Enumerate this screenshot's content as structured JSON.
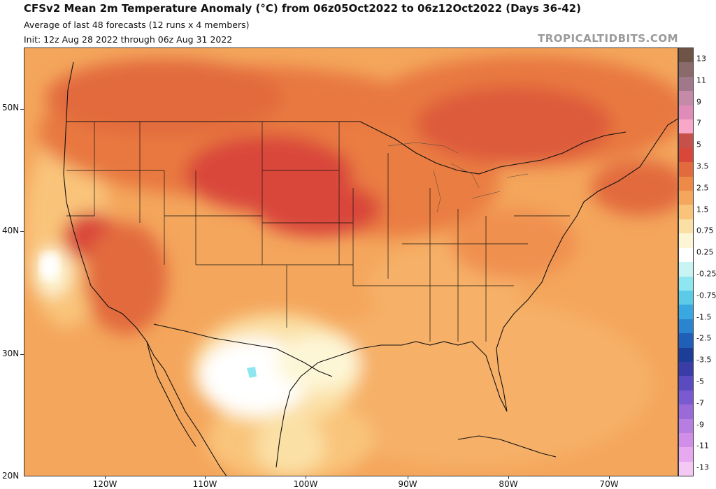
{
  "header": {
    "title": "CFSv2 Mean 2m Temperature Anomaly (°C) from 06z05Oct2022 to 06z12Oct2022 (Days 36-42)",
    "subtitle_1": "Average of last 48 forecasts (12 runs x 4 members)",
    "subtitle_2": "Init: 12z Aug 28 2022 through 06z Aug 31 2022",
    "credit": "TROPICALTIDBITS.COM"
  },
  "map": {
    "lat_labels": [
      "50N",
      "40N",
      "30N",
      "20N"
    ],
    "lon_labels": [
      "120W",
      "110W",
      "100W",
      "90W",
      "80W",
      "70W"
    ]
  },
  "legend": {
    "labels": [
      "13",
      "11",
      "9",
      "7",
      "5",
      "3.5",
      "2.5",
      "1.5",
      "0.75",
      "0.25",
      "-0.25",
      "-0.75",
      "-1.5",
      "-2.5",
      "-3.5",
      "-5",
      "-7",
      "-9",
      "-11",
      "-13"
    ],
    "colors": [
      "#6e5444",
      "#8a6a6a",
      "#a0788a",
      "#c48aa8",
      "#e08cb8",
      "#f7a7c7",
      "#c8504a",
      "#d9463a",
      "#e26a3c",
      "#ee8a48",
      "#f4a65c",
      "#f9c47a",
      "#fbe0a6",
      "#fdf6d6",
      "#ffffff",
      "#c8f4f4",
      "#8ee6f0",
      "#5ccbe8",
      "#3aa8e0",
      "#2a84d0",
      "#1f5fb8",
      "#1d3e98",
      "#3a3ca8",
      "#5a4cc0",
      "#7a5ad0",
      "#9a6ad8",
      "#b67ee0",
      "#d08ee8",
      "#e6a8ee",
      "#f4c8f4"
    ]
  }
}
